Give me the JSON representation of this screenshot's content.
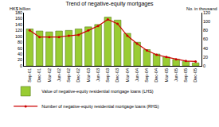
{
  "chart_data": {
    "type": "bar",
    "title": "Trend of negative-equity mortgages",
    "y_label": "HK$ billion",
    "y2_label": "No. in thousand",
    "categories": [
      "Sep-01",
      "Dec-01",
      "Mar-02",
      "Jun-02",
      "Sep-02",
      "Dec-02",
      "Mar-03",
      "Jun-03",
      "Sep-03",
      "Dec-03",
      "Mar-04",
      "Jun-04",
      "Sep-04",
      "Dec-04",
      "Mar-05",
      "Jun-05",
      "Sep-05",
      "Dec-05"
    ],
    "series": [
      {
        "name": "Value of negative-equity residential mortgage loans (LHS)",
        "type": "bar",
        "color": "#99cc33",
        "values": [
          125,
          118,
          115,
          118,
          120,
          125,
          132,
          140,
          165,
          155,
          110,
          80,
          55,
          40,
          30,
          22,
          15,
          10
        ]
      },
      {
        "name": "Number of negative-equity residential mortgage loans (RHS)",
        "type": "line",
        "axis": "y2",
        "color": "#cc0000",
        "marker": "circle",
        "values": [
          80,
          65,
          65,
          65,
          68,
          70,
          80,
          90,
          105,
          95,
          68,
          50,
          35,
          25,
          20,
          15,
          11,
          10
        ]
      }
    ],
    "ylim": [
      0,
      180
    ],
    "yticks": [
      0,
      20,
      40,
      60,
      80,
      100,
      120,
      140,
      160,
      180
    ],
    "y2lim": [
      0,
      120
    ],
    "y2ticks": [
      0,
      20,
      40,
      60,
      80,
      100,
      120
    ],
    "grid": false,
    "legend": "bottom"
  }
}
